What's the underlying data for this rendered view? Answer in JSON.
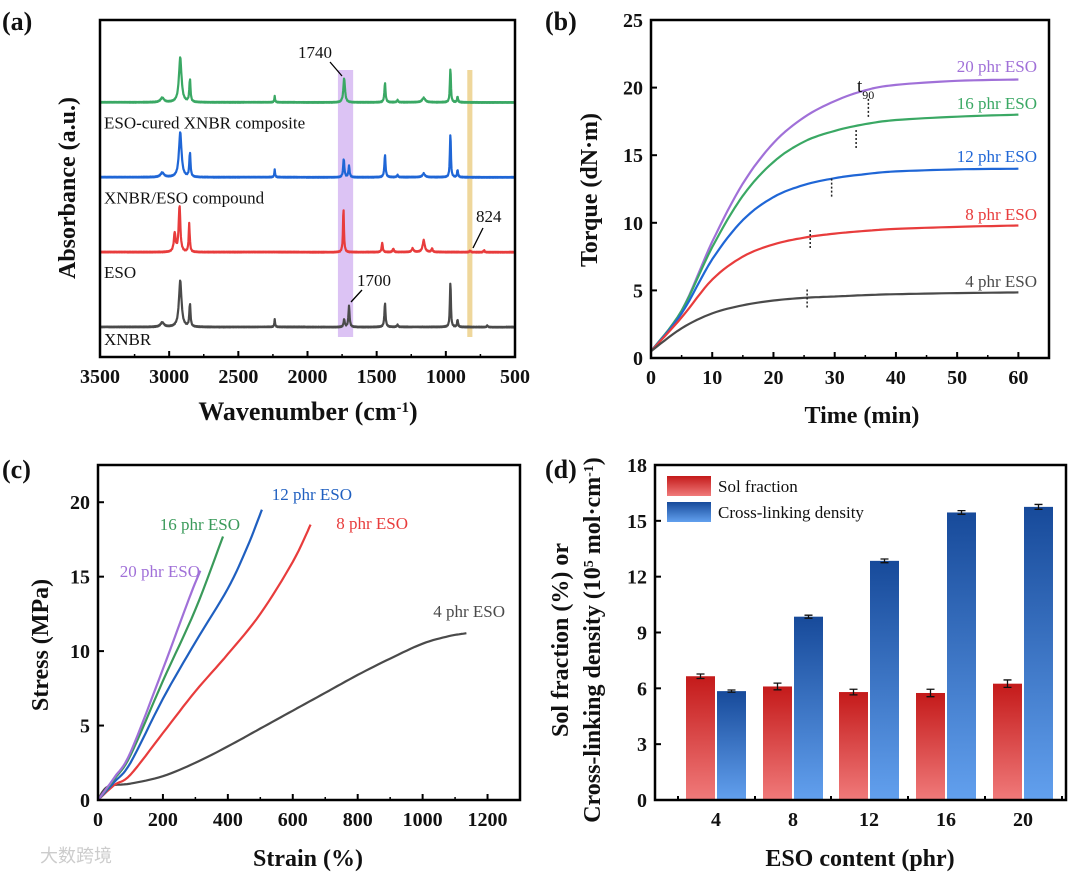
{
  "panel_labels": [
    "(a)",
    "(b)",
    "(c)",
    "(d)"
  ],
  "watermark": "大数跨境",
  "chart_data": [
    {
      "id": "a",
      "type": "line",
      "xlabel": "Wavenumber (cm",
      "xlabel_sup": "-1",
      "xlabel_end": ")",
      "ylabel": "Absorbance (a.u.)",
      "xlim": [
        3500,
        500
      ],
      "ylim": [
        -0.4,
        4.1
      ],
      "xticks": [
        3500,
        3000,
        2500,
        2000,
        1500,
        1000,
        500
      ],
      "highlight_bands": [
        {
          "range": [
            1780,
            1670
          ],
          "color": "#d6b8f2"
        },
        {
          "range": [
            845,
            808
          ],
          "color": "#ecd08a"
        }
      ],
      "series": [
        {
          "name": "XNBR",
          "offset": 0,
          "color": "#4a4a4a",
          "peaks": [
            [
              3050,
              0.06,
              30
            ],
            [
              2920,
              0.62,
              22
            ],
            [
              2850,
              0.3,
              10
            ],
            [
              2237,
              0.1,
              7
            ],
            [
              1735,
              0.1,
              10
            ],
            [
              1700,
              0.28,
              10
            ],
            [
              1440,
              0.32,
              10
            ],
            [
              1350,
              0.03,
              10
            ],
            [
              967,
              0.62,
              8
            ],
            [
              915,
              0.1,
              8
            ],
            [
              700,
              0.02,
              10
            ]
          ]
        },
        {
          "name": "ESO",
          "offset": 1,
          "color": "#e83c3c",
          "peaks": [
            [
              2960,
              0.25,
              15
            ],
            [
              2925,
              0.62,
              14
            ],
            [
              2855,
              0.38,
              9
            ],
            [
              1740,
              0.6,
              8
            ],
            [
              1460,
              0.13,
              9
            ],
            [
              1380,
              0.05,
              10
            ],
            [
              1240,
              0.05,
              15
            ],
            [
              1160,
              0.16,
              18
            ],
            [
              1100,
              0.05,
              10
            ],
            [
              824,
              0.02,
              10
            ],
            [
              724,
              0.03,
              8
            ]
          ]
        },
        {
          "name": "XNBR/ESO compound",
          "offset": 2,
          "color": "#1f66d6",
          "peaks": [
            [
              3050,
              0.06,
              30
            ],
            [
              2920,
              0.6,
              22
            ],
            [
              2850,
              0.32,
              10
            ],
            [
              2237,
              0.1,
              7
            ],
            [
              1738,
              0.25,
              10
            ],
            [
              1700,
              0.15,
              10
            ],
            [
              1440,
              0.3,
              10
            ],
            [
              1350,
              0.03,
              10
            ],
            [
              1160,
              0.05,
              20
            ],
            [
              967,
              0.6,
              8
            ],
            [
              915,
              0.1,
              8
            ]
          ]
        },
        {
          "name": "ESO-cured XNBR composite",
          "offset": 3,
          "color": "#3aa864",
          "peaks": [
            [
              3050,
              0.06,
              30
            ],
            [
              2920,
              0.6,
              22
            ],
            [
              2850,
              0.3,
              10
            ],
            [
              2237,
              0.08,
              7
            ],
            [
              1735,
              0.32,
              14
            ],
            [
              1440,
              0.26,
              10
            ],
            [
              1350,
              0.03,
              10
            ],
            [
              1160,
              0.06,
              25
            ],
            [
              967,
              0.47,
              8
            ],
            [
              915,
              0.08,
              8
            ]
          ]
        }
      ],
      "annotations": [
        {
          "text": "1740",
          "at": [
            1740,
            3.3
          ]
        },
        {
          "text": "1700",
          "at": [
            1700,
            0.3
          ]
        },
        {
          "text": "824",
          "at": [
            824,
            1.03
          ]
        }
      ]
    },
    {
      "id": "b",
      "type": "line",
      "xlabel": "Time (min)",
      "ylabel": "Torque (dN·m)",
      "xlim": [
        0,
        65
      ],
      "ylim": [
        0,
        25
      ],
      "xticks": [
        0,
        10,
        20,
        30,
        40,
        50,
        60
      ],
      "yticks": [
        0,
        5,
        10,
        15,
        20,
        25
      ],
      "x": [
        0,
        5,
        10,
        15,
        20,
        25,
        30,
        35,
        40,
        50,
        60
      ],
      "t90_label": "t",
      "t90_sub": "90",
      "series": [
        {
          "name": "20 phr ESO",
          "color": "#a070d8",
          "values": [
            0.5,
            3.5,
            8.6,
            12.9,
            15.9,
            17.8,
            19.0,
            19.8,
            20.2,
            20.5,
            20.6
          ],
          "t90": [
            35.5,
            18.5
          ]
        },
        {
          "name": "16 phr ESO",
          "color": "#3aa864",
          "values": [
            0.5,
            3.5,
            8.2,
            12.0,
            14.5,
            16.0,
            16.8,
            17.3,
            17.6,
            17.85,
            18.0
          ],
          "t90": [
            33.5,
            16.2
          ]
        },
        {
          "name": "12 phr ESO",
          "color": "#1f66d6",
          "values": [
            0.5,
            3.3,
            7.3,
            10.2,
            11.9,
            12.8,
            13.3,
            13.6,
            13.8,
            13.95,
            14.0
          ],
          "t90": [
            29.5,
            12.6
          ]
        },
        {
          "name": "8 phr ESO",
          "color": "#e83c3c",
          "values": [
            0.5,
            3.0,
            5.8,
            7.5,
            8.4,
            8.9,
            9.2,
            9.4,
            9.55,
            9.7,
            9.8
          ],
          "t90": [
            26,
            8.8
          ]
        },
        {
          "name": "4 phr ESO",
          "color": "#4a4a4a",
          "values": [
            0.5,
            2.2,
            3.3,
            3.9,
            4.25,
            4.45,
            4.55,
            4.65,
            4.72,
            4.8,
            4.85
          ],
          "t90": [
            25.5,
            4.4
          ]
        }
      ]
    },
    {
      "id": "c",
      "type": "line",
      "xlabel": "Strain (%)",
      "ylabel": "Stress (MPa)",
      "xlim": [
        0,
        1300
      ],
      "ylim": [
        0,
        22.5
      ],
      "xticks": [
        0,
        200,
        400,
        600,
        800,
        1000,
        1200
      ],
      "yticks": [
        0,
        5,
        10,
        15,
        20
      ],
      "series": [
        {
          "name": "4 phr ESO",
          "color": "#4a4a4a",
          "points": [
            [
              0,
              0
            ],
            [
              30,
              0.9
            ],
            [
              100,
              1.1
            ],
            [
              200,
              1.6
            ],
            [
              300,
              2.5
            ],
            [
              400,
              3.6
            ],
            [
              500,
              4.8
            ],
            [
              600,
              6.0
            ],
            [
              700,
              7.2
            ],
            [
              800,
              8.4
            ],
            [
              900,
              9.5
            ],
            [
              1000,
              10.5
            ],
            [
              1080,
              11.0
            ],
            [
              1135,
              11.2
            ]
          ]
        },
        {
          "name": "8 phr ESO",
          "color": "#e83c3c",
          "points": [
            [
              0,
              0
            ],
            [
              50,
              1.0
            ],
            [
              100,
              1.7
            ],
            [
              200,
              4.5
            ],
            [
              300,
              7.3
            ],
            [
              400,
              9.8
            ],
            [
              500,
              12.5
            ],
            [
              600,
              16.0
            ],
            [
              655,
              18.5
            ]
          ]
        },
        {
          "name": "12 phr ESO",
          "color": "#1f5fc0",
          "points": [
            [
              0,
              0
            ],
            [
              50,
              1.2
            ],
            [
              100,
              2.5
            ],
            [
              200,
              6.8
            ],
            [
              300,
              10.6
            ],
            [
              400,
              14.2
            ],
            [
              460,
              17.0
            ],
            [
              505,
              19.5
            ]
          ]
        },
        {
          "name": "16 phr ESO",
          "color": "#3a9a5a",
          "points": [
            [
              0,
              0
            ],
            [
              50,
              1.4
            ],
            [
              100,
              3.0
            ],
            [
              200,
              8.0
            ],
            [
              300,
              12.8
            ],
            [
              385,
              17.7
            ]
          ]
        },
        {
          "name": "20 phr ESO",
          "color": "#a070d8",
          "points": [
            [
              0,
              0
            ],
            [
              50,
              1.5
            ],
            [
              100,
              3.2
            ],
            [
              200,
              8.8
            ],
            [
              280,
              13.5
            ],
            [
              315,
              15.4
            ]
          ]
        }
      ]
    },
    {
      "id": "d",
      "type": "bar",
      "xlabel": "ESO content (phr)",
      "ylabel_line1": "Sol fraction (%) or",
      "ylabel_line2a": "Cross-linking  density (10",
      "ylabel_sup1": "5",
      "ylabel_line2b": " mol·cm",
      "ylabel_sup2": "-1",
      "ylabel_end": ")",
      "ylim": [
        0,
        18
      ],
      "yticks": [
        0,
        3,
        6,
        9,
        12,
        15,
        18
      ],
      "categories": [
        "4",
        "8",
        "12",
        "16",
        "20"
      ],
      "legend_position": "top-left",
      "series": [
        {
          "name": "Sol fraction",
          "colors": [
            "#c41a1a",
            "#f07a7a"
          ],
          "values": [
            6.65,
            6.1,
            5.8,
            5.75,
            6.25
          ],
          "errors": [
            0.12,
            0.18,
            0.15,
            0.2,
            0.2
          ]
        },
        {
          "name": "Cross-linking density",
          "colors": [
            "#174a9a",
            "#62a0ee"
          ],
          "values": [
            5.85,
            9.85,
            12.85,
            15.45,
            15.75
          ],
          "errors": [
            0.06,
            0.08,
            0.1,
            0.1,
            0.13
          ]
        }
      ]
    }
  ]
}
